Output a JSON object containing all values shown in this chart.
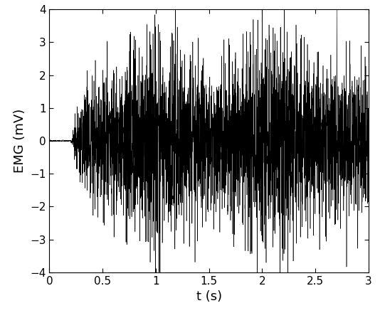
{
  "fs": 10000,
  "duration": 3.0,
  "onset": 0.2,
  "ylim": [
    -4,
    4
  ],
  "xlim": [
    0,
    3
  ],
  "xlabel": "t (s)",
  "ylabel": "EMG (mV)",
  "line_color": "#000000",
  "line_width": 0.4,
  "background_color": "#ffffff",
  "tick_label_size": 11,
  "axis_label_size": 13,
  "xticks": [
    0,
    0.5,
    1.0,
    1.5,
    2.0,
    2.5,
    3.0
  ],
  "xtick_labels": [
    "0",
    "0.5",
    "1",
    "1.5",
    "2",
    "2.5",
    "3"
  ],
  "yticks": [
    -4,
    -3,
    -2,
    -1,
    0,
    1,
    2,
    3,
    4
  ],
  "seed": 12345,
  "envelope_scale": 1.05,
  "noise_floor": 0.01
}
